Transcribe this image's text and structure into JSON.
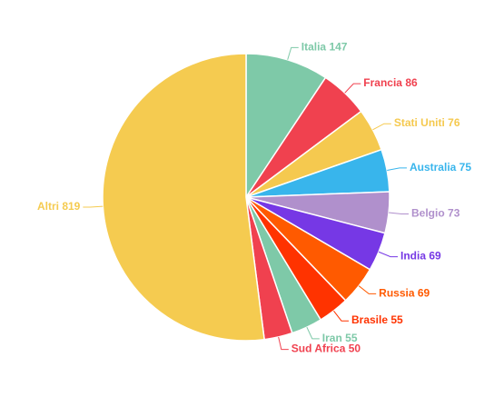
{
  "chart_data": {
    "type": "pie",
    "categories": [
      "Italia",
      "Francia",
      "Stati Uniti",
      "Australia",
      "Belgio",
      "India",
      "Russia",
      "Brasile",
      "Iran",
      "Sud Africa",
      "Altri"
    ],
    "values": [
      147,
      86,
      76,
      75,
      73,
      69,
      69,
      55,
      55,
      50,
      819
    ],
    "colors": [
      "#7ec9a8",
      "#f0414f",
      "#f5c94f",
      "#38b5ec",
      "#b090cc",
      "#7638e5",
      "#ff5a00",
      "#ff3300",
      "#7ec9a8",
      "#f0414f",
      "#f5cb50"
    ]
  }
}
